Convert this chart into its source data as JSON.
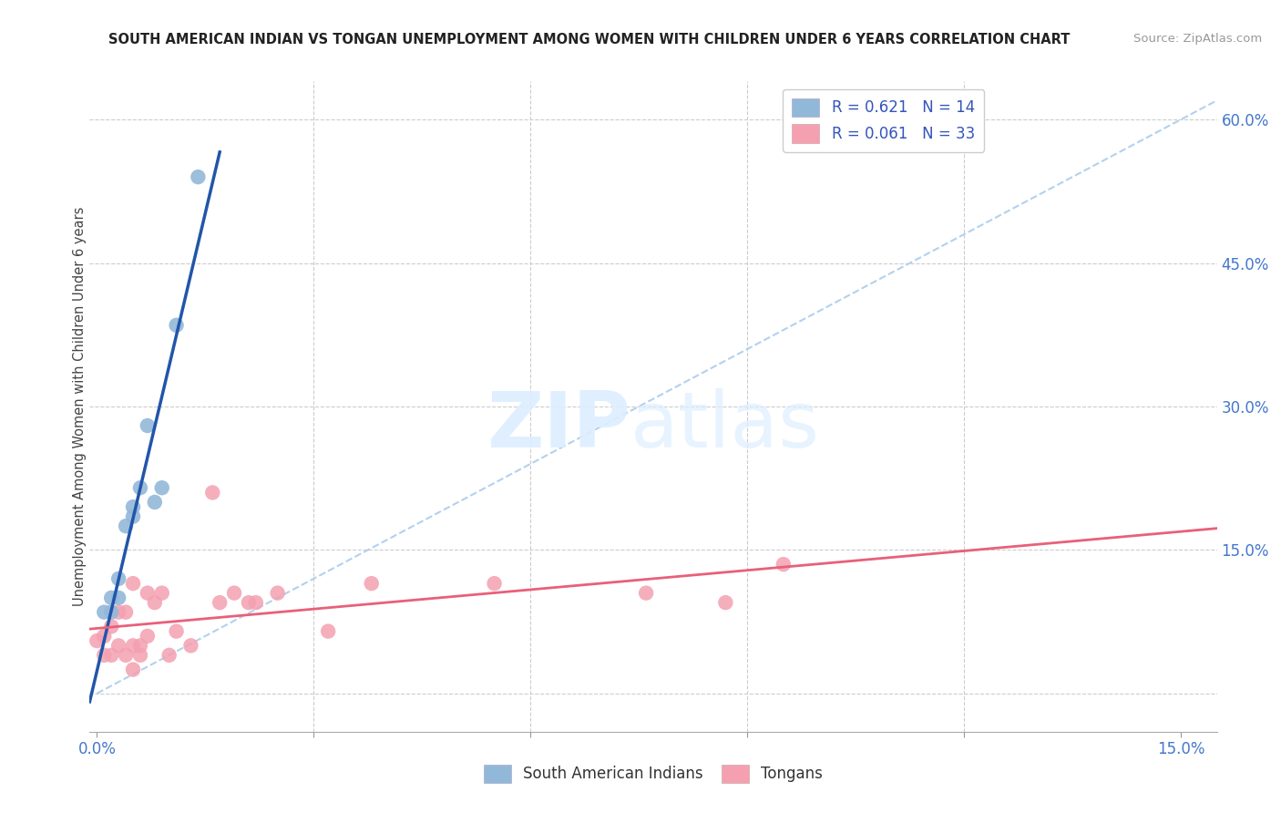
{
  "title": "SOUTH AMERICAN INDIAN VS TONGAN UNEMPLOYMENT AMONG WOMEN WITH CHILDREN UNDER 6 YEARS CORRELATION CHART",
  "source": "Source: ZipAtlas.com",
  "ylabel": "Unemployment Among Women with Children Under 6 years",
  "legend_r1": "R = 0.621",
  "legend_n1": "N = 14",
  "legend_r2": "R = 0.061",
  "legend_n2": "N = 33",
  "legend_label1": "South American Indians",
  "legend_label2": "Tongans",
  "blue_color": "#92b8d9",
  "pink_color": "#f4a0b0",
  "blue_line_color": "#2255aa",
  "pink_line_color": "#e8607a",
  "dashed_line_color": "#aaccee",
  "blue_scatter_x": [
    0.001,
    0.002,
    0.002,
    0.003,
    0.003,
    0.004,
    0.005,
    0.005,
    0.006,
    0.007,
    0.008,
    0.009,
    0.011,
    0.014
  ],
  "blue_scatter_y": [
    0.085,
    0.1,
    0.085,
    0.12,
    0.1,
    0.175,
    0.185,
    0.195,
    0.215,
    0.28,
    0.2,
    0.215,
    0.385,
    0.54
  ],
  "pink_scatter_x": [
    0.0,
    0.001,
    0.001,
    0.002,
    0.002,
    0.003,
    0.003,
    0.004,
    0.004,
    0.005,
    0.005,
    0.005,
    0.006,
    0.006,
    0.007,
    0.007,
    0.008,
    0.009,
    0.01,
    0.011,
    0.013,
    0.016,
    0.017,
    0.019,
    0.021,
    0.022,
    0.025,
    0.032,
    0.038,
    0.055,
    0.076,
    0.087,
    0.095
  ],
  "pink_scatter_y": [
    0.055,
    0.04,
    0.06,
    0.04,
    0.07,
    0.05,
    0.085,
    0.04,
    0.085,
    0.025,
    0.05,
    0.115,
    0.04,
    0.05,
    0.06,
    0.105,
    0.095,
    0.105,
    0.04,
    0.065,
    0.05,
    0.21,
    0.095,
    0.105,
    0.095,
    0.095,
    0.105,
    0.065,
    0.115,
    0.115,
    0.105,
    0.095,
    0.135
  ],
  "xmin": -0.001,
  "xmax": 0.155,
  "ymin": -0.04,
  "ymax": 0.64,
  "x_tick_positions": [
    0.0,
    0.03,
    0.06,
    0.09,
    0.12,
    0.15
  ],
  "y_tick_positions": [
    0.0,
    0.15,
    0.3,
    0.45,
    0.6
  ],
  "background_color": "#FFFFFF",
  "grid_color": "#CCCCCC"
}
